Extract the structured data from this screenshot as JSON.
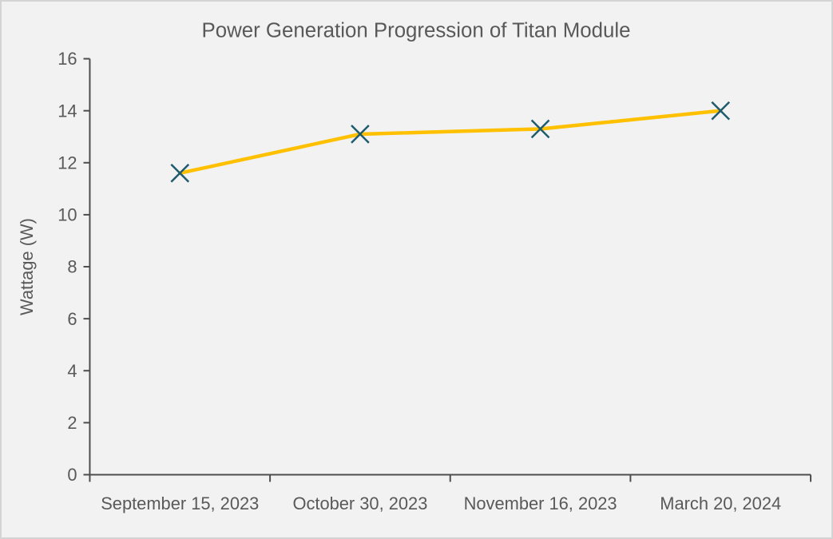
{
  "chart": {
    "title": "Power Generation Progression of Titan Module",
    "ylabel": "Wattage (W)"
  },
  "chart_data": {
    "type": "line",
    "title": "Power Generation Progression of Titan Module",
    "xlabel": "",
    "ylabel": "Wattage (W)",
    "categories": [
      "September 15, 2023",
      "October 30, 2023",
      "November 16, 2023",
      "March 20, 2024"
    ],
    "series": [
      {
        "name": "Wattage",
        "values": [
          11.6,
          13.1,
          13.3,
          14.0
        ]
      }
    ],
    "ylim": [
      0,
      16
    ],
    "yticks": [
      0,
      2,
      4,
      6,
      8,
      10,
      12,
      14,
      16
    ],
    "grid": false,
    "legend_position": "none",
    "line_color": "#FFC000",
    "marker": "x",
    "marker_color": "#1F5B6E",
    "axis_color": "#4D4D4D",
    "text_color": "#595959",
    "background_color": "#F2F2F2"
  }
}
